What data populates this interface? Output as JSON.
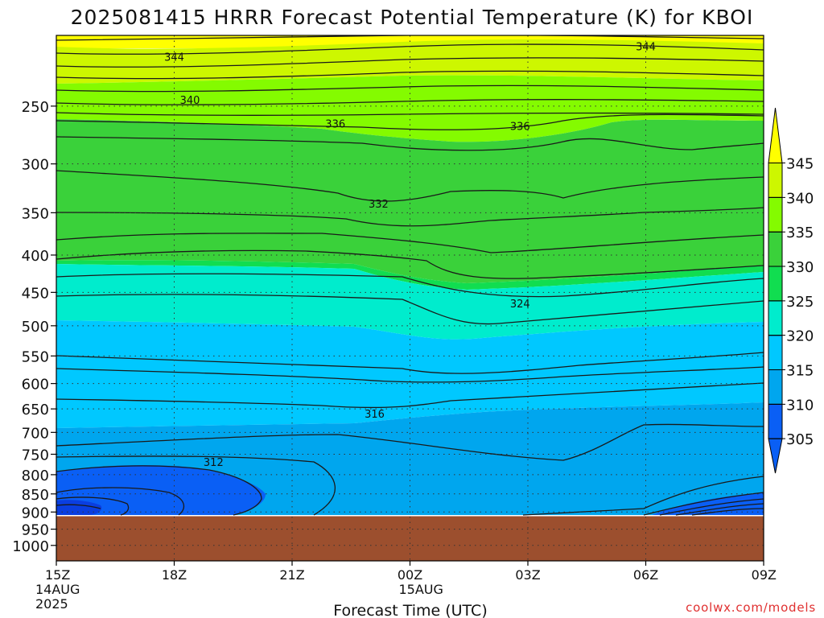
{
  "chart_data": {
    "type": "heatmap",
    "title": "2025081415 HRRR Forecast Potential Temperature (K) for KBOI",
    "xlabel": "Forecast Time (UTC)",
    "watermark": "coolwx.com/models",
    "x_ticks": [
      {
        "label": "15Z",
        "sub": [
          "14AUG",
          "2025"
        ],
        "hours": 0
      },
      {
        "label": "18Z",
        "sub": [],
        "hours": 3
      },
      {
        "label": "21Z",
        "sub": [],
        "hours": 6
      },
      {
        "label": "00Z",
        "sub": [
          "15AUG"
        ],
        "hours": 9
      },
      {
        "label": "03Z",
        "sub": [],
        "hours": 12
      },
      {
        "label": "06Z",
        "sub": [],
        "hours": 15
      },
      {
        "label": "09Z",
        "sub": [],
        "hours": 18
      }
    ],
    "y_ticks": [
      250,
      300,
      350,
      400,
      450,
      500,
      550,
      600,
      650,
      700,
      750,
      800,
      850,
      900,
      950,
      1000
    ],
    "y_range_hPa": [
      200,
      1050
    ],
    "x_range_hours": [
      0,
      18
    ],
    "surface_pressure_hPa": 912,
    "ground_color": "#9c4f2e",
    "colorbar": {
      "levels": [
        305,
        310,
        315,
        320,
        325,
        330,
        335,
        340,
        345
      ],
      "colors": [
        "#0a5ff5",
        "#0a5ff5",
        "#00a6ee",
        "#00c8ff",
        "#00eccd",
        "#11dd50",
        "#3ad13a",
        "#84fb00",
        "#cdf700",
        "#ffff00"
      ]
    },
    "contour_labels": [
      {
        "text": "344",
        "hours": 3,
        "hPa": 214
      },
      {
        "text": "344",
        "hours": 15,
        "hPa": 207
      },
      {
        "text": "340",
        "hours": 3.4,
        "hPa": 245
      },
      {
        "text": "336",
        "hours": 7.1,
        "hPa": 264
      },
      {
        "text": "336",
        "hours": 11.8,
        "hPa": 266
      },
      {
        "text": "332",
        "hours": 8.2,
        "hPa": 340
      },
      {
        "text": "324",
        "hours": 11.8,
        "hPa": 466
      },
      {
        "text": "316",
        "hours": 8.1,
        "hPa": 660
      },
      {
        "text": "312",
        "hours": 4.0,
        "hPa": 768
      }
    ]
  }
}
